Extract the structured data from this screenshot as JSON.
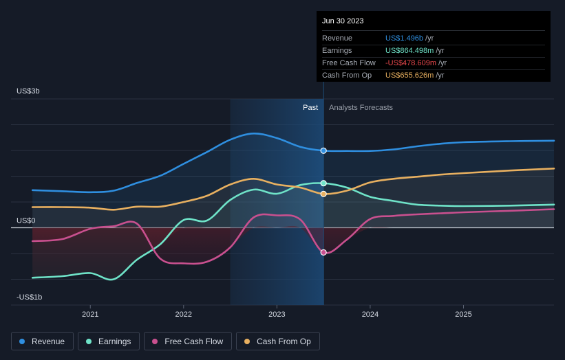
{
  "chart_data": {
    "type": "line",
    "title": "",
    "y_axis": {
      "top_label": "US$3b",
      "zero_label": "US$0",
      "bottom_label": "-US$1b",
      "ylim": [
        -1.5,
        2.5
      ]
    },
    "x_ticks": [
      "2021",
      "2022",
      "2023",
      "2024",
      "2025"
    ],
    "x_tick_positions": [
      2021.0,
      2022.0,
      2023.0,
      2024.0,
      2025.0
    ],
    "xlim": [
      2020.15,
      2025.97
    ],
    "divider_x": 2023.5,
    "past_start_x": 2022.5,
    "segments": {
      "past": "Past",
      "forecast": "Analysts Forecasts"
    },
    "series": [
      {
        "key": "revenue",
        "name": "Revenue",
        "color": "#2f8fe0",
        "points": [
          [
            2020.38,
            0.73
          ],
          [
            2020.7,
            0.71
          ],
          [
            2021.0,
            0.69
          ],
          [
            2021.25,
            0.72
          ],
          [
            2021.5,
            0.87
          ],
          [
            2021.75,
            1.01
          ],
          [
            2022.0,
            1.24
          ],
          [
            2022.25,
            1.47
          ],
          [
            2022.5,
            1.71
          ],
          [
            2022.75,
            1.83
          ],
          [
            2023.0,
            1.74
          ],
          [
            2023.25,
            1.57
          ],
          [
            2023.5,
            1.496
          ],
          [
            2023.75,
            1.49
          ],
          [
            2024.0,
            1.49
          ],
          [
            2024.25,
            1.52
          ],
          [
            2024.5,
            1.58
          ],
          [
            2024.75,
            1.63
          ],
          [
            2025.0,
            1.66
          ],
          [
            2025.5,
            1.68
          ],
          [
            2025.97,
            1.69
          ]
        ]
      },
      {
        "key": "earnings",
        "name": "Earnings",
        "color": "#6fe3c8",
        "points": [
          [
            2020.38,
            -0.97
          ],
          [
            2020.7,
            -0.94
          ],
          [
            2021.0,
            -0.88
          ],
          [
            2021.25,
            -1.0
          ],
          [
            2021.5,
            -0.62
          ],
          [
            2021.75,
            -0.32
          ],
          [
            2022.0,
            0.15
          ],
          [
            2022.25,
            0.14
          ],
          [
            2022.5,
            0.54
          ],
          [
            2022.75,
            0.74
          ],
          [
            2023.0,
            0.66
          ],
          [
            2023.25,
            0.83
          ],
          [
            2023.5,
            0.864
          ],
          [
            2023.75,
            0.78
          ],
          [
            2024.0,
            0.6
          ],
          [
            2024.25,
            0.52
          ],
          [
            2024.5,
            0.45
          ],
          [
            2024.75,
            0.43
          ],
          [
            2025.0,
            0.42
          ],
          [
            2025.5,
            0.43
          ],
          [
            2025.97,
            0.45
          ]
        ]
      },
      {
        "key": "fcf",
        "name": "Free Cash Flow",
        "color": "#c9508f",
        "points": [
          [
            2020.38,
            -0.26
          ],
          [
            2020.7,
            -0.22
          ],
          [
            2021.0,
            -0.02
          ],
          [
            2021.25,
            0.03
          ],
          [
            2021.5,
            0.08
          ],
          [
            2021.75,
            -0.6
          ],
          [
            2022.0,
            -0.69
          ],
          [
            2022.25,
            -0.66
          ],
          [
            2022.5,
            -0.38
          ],
          [
            2022.75,
            0.2
          ],
          [
            2023.0,
            0.24
          ],
          [
            2023.25,
            0.16
          ],
          [
            2023.5,
            -0.479
          ],
          [
            2023.75,
            -0.23
          ],
          [
            2024.0,
            0.17
          ],
          [
            2024.25,
            0.23
          ],
          [
            2024.5,
            0.26
          ],
          [
            2024.75,
            0.28
          ],
          [
            2025.0,
            0.3
          ],
          [
            2025.5,
            0.33
          ],
          [
            2025.97,
            0.36
          ]
        ]
      },
      {
        "key": "cfo",
        "name": "Cash From Op",
        "color": "#e8b060",
        "points": [
          [
            2020.38,
            0.4
          ],
          [
            2020.7,
            0.4
          ],
          [
            2021.0,
            0.39
          ],
          [
            2021.25,
            0.35
          ],
          [
            2021.5,
            0.41
          ],
          [
            2021.75,
            0.41
          ],
          [
            2022.0,
            0.5
          ],
          [
            2022.25,
            0.62
          ],
          [
            2022.5,
            0.84
          ],
          [
            2022.75,
            0.95
          ],
          [
            2023.0,
            0.84
          ],
          [
            2023.25,
            0.78
          ],
          [
            2023.5,
            0.656
          ],
          [
            2023.75,
            0.72
          ],
          [
            2024.0,
            0.88
          ],
          [
            2024.25,
            0.95
          ],
          [
            2024.5,
            0.99
          ],
          [
            2024.75,
            1.03
          ],
          [
            2025.0,
            1.06
          ],
          [
            2025.5,
            1.11
          ],
          [
            2025.97,
            1.15
          ]
        ]
      }
    ]
  },
  "tooltip": {
    "date": "Jun 30 2023",
    "rows": [
      {
        "label": "Revenue",
        "value": "US$1.496b",
        "unit": "/yr",
        "color": "#2f8fe0"
      },
      {
        "label": "Earnings",
        "value": "US$864.498m",
        "unit": "/yr",
        "color": "#6fe3c8"
      },
      {
        "label": "Free Cash Flow",
        "value": "-US$478.609m",
        "unit": "/yr",
        "color": "#e8484c"
      },
      {
        "label": "Cash From Op",
        "value": "US$655.626m",
        "unit": "/yr",
        "color": "#e8b060"
      }
    ]
  },
  "legend": [
    {
      "label": "Revenue",
      "color": "#2f8fe0"
    },
    {
      "label": "Earnings",
      "color": "#6fe3c8"
    },
    {
      "label": "Free Cash Flow",
      "color": "#c9508f"
    },
    {
      "label": "Cash From Op",
      "color": "#e8b060"
    }
  ]
}
